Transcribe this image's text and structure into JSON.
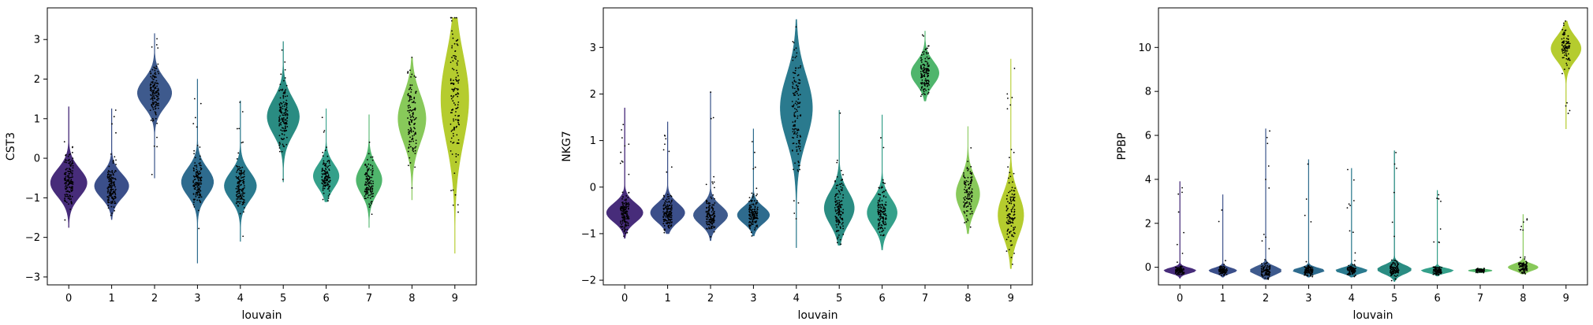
{
  "chart_data": [
    {
      "type": "violin",
      "xlabel": "louvain",
      "ylabel": "CST3",
      "categories": [
        "0",
        "1",
        "2",
        "3",
        "4",
        "5",
        "6",
        "7",
        "8",
        "9"
      ],
      "ylim": [
        -3.2,
        3.8
      ],
      "yticks": [
        -3,
        -2,
        -1,
        0,
        1,
        2,
        3
      ],
      "violins": [
        {
          "min": -1.75,
          "max": 1.3,
          "median": -0.62,
          "spread": 0.35,
          "width": 0.85
        },
        {
          "min": -1.55,
          "max": 1.25,
          "median": -0.7,
          "spread": 0.3,
          "width": 0.8
        },
        {
          "min": -0.5,
          "max": 3.15,
          "median": 1.65,
          "spread": 0.35,
          "width": 0.8
        },
        {
          "min": -2.65,
          "max": 2.0,
          "median": -0.6,
          "spread": 0.35,
          "width": 0.75
        },
        {
          "min": -2.1,
          "max": 1.45,
          "median": -0.7,
          "spread": 0.35,
          "width": 0.75
        },
        {
          "min": -0.6,
          "max": 2.95,
          "median": 1.05,
          "spread": 0.45,
          "width": 0.75
        },
        {
          "min": -1.1,
          "max": 1.25,
          "median": -0.45,
          "spread": 0.3,
          "width": 0.6
        },
        {
          "min": -1.75,
          "max": 1.1,
          "median": -0.55,
          "spread": 0.35,
          "width": 0.6
        },
        {
          "min": -1.05,
          "max": 2.55,
          "median": 1.0,
          "spread": 0.6,
          "width": 0.65
        },
        {
          "min": -2.4,
          "max": 3.55,
          "median": 1.5,
          "spread": 1.1,
          "width": 0.65
        }
      ]
    },
    {
      "type": "violin",
      "xlabel": "louvain",
      "ylabel": "NKG7",
      "categories": [
        "0",
        "1",
        "2",
        "3",
        "4",
        "5",
        "6",
        "7",
        "8",
        "9"
      ],
      "ylim": [
        -2.1,
        3.85
      ],
      "yticks": [
        -2,
        -1,
        0,
        1,
        2,
        3
      ],
      "violins": [
        {
          "min": -1.1,
          "max": 1.7,
          "median": -0.55,
          "spread": 0.2,
          "width": 0.85
        },
        {
          "min": -1.0,
          "max": 1.4,
          "median": -0.55,
          "spread": 0.2,
          "width": 0.8
        },
        {
          "min": -1.15,
          "max": 2.05,
          "median": -0.6,
          "spread": 0.2,
          "width": 0.8
        },
        {
          "min": -1.05,
          "max": 1.25,
          "median": -0.6,
          "spread": 0.18,
          "width": 0.75
        },
        {
          "min": -1.3,
          "max": 3.6,
          "median": 1.7,
          "spread": 0.7,
          "width": 0.75
        },
        {
          "min": -1.25,
          "max": 1.65,
          "median": -0.45,
          "spread": 0.35,
          "width": 0.7
        },
        {
          "min": -1.35,
          "max": 1.55,
          "median": -0.55,
          "spread": 0.3,
          "width": 0.7
        },
        {
          "min": 1.85,
          "max": 3.35,
          "median": 2.45,
          "spread": 0.25,
          "width": 0.65
        },
        {
          "min": -1.0,
          "max": 1.3,
          "median": -0.15,
          "spread": 0.35,
          "width": 0.55
        },
        {
          "min": -1.75,
          "max": 2.75,
          "median": -0.6,
          "spread": 0.45,
          "width": 0.6
        }
      ]
    },
    {
      "type": "violin",
      "xlabel": "louvain",
      "ylabel": "PPBP",
      "categories": [
        "0",
        "1",
        "2",
        "3",
        "4",
        "5",
        "6",
        "7",
        "8",
        "9"
      ],
      "ylim": [
        -0.8,
        11.8
      ],
      "yticks": [
        0,
        2,
        4,
        6,
        8,
        10
      ],
      "violins": [
        {
          "min": -0.5,
          "max": 3.9,
          "median": -0.15,
          "spread": 0.12,
          "width": 0.75
        },
        {
          "min": -0.45,
          "max": 3.3,
          "median": -0.15,
          "spread": 0.12,
          "width": 0.65
        },
        {
          "min": -0.55,
          "max": 6.3,
          "median": -0.15,
          "spread": 0.18,
          "width": 0.75
        },
        {
          "min": -0.45,
          "max": 4.9,
          "median": -0.15,
          "spread": 0.12,
          "width": 0.75
        },
        {
          "min": -0.45,
          "max": 4.5,
          "median": -0.15,
          "spread": 0.12,
          "width": 0.75
        },
        {
          "min": -0.65,
          "max": 5.3,
          "median": -0.1,
          "spread": 0.2,
          "width": 0.8
        },
        {
          "min": -0.4,
          "max": 3.5,
          "median": -0.15,
          "spread": 0.1,
          "width": 0.75
        },
        {
          "min": -0.25,
          "max": -0.05,
          "median": -0.15,
          "spread": 0.05,
          "width": 0.55
        },
        {
          "min": -0.3,
          "max": 2.4,
          "median": 0.0,
          "spread": 0.15,
          "width": 0.7
        },
        {
          "min": 6.3,
          "max": 11.2,
          "median": 9.95,
          "spread": 0.55,
          "width": 0.7
        }
      ]
    }
  ],
  "palette": [
    "#440154",
    "#482878",
    "#3e4989",
    "#31688e",
    "#26828e",
    "#1f9e89",
    "#35b779",
    "#6ece58",
    "#b5de2b",
    "#fde725"
  ],
  "violin_colors": [
    "#472c7a",
    "#3b4f8a",
    "#3e5a8d",
    "#2e6b8e",
    "#2a7a8e",
    "#2a8c82",
    "#34a08a",
    "#4fb56c",
    "#88c95a",
    "#b5cc2e"
  ]
}
